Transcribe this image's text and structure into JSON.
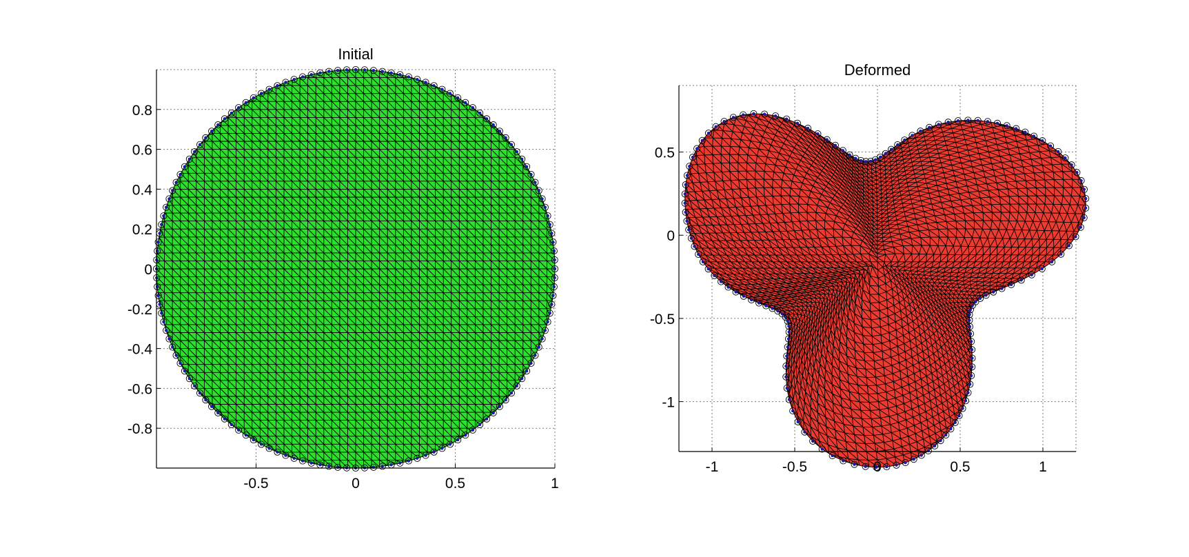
{
  "chart_data": [
    {
      "type": "scatter",
      "title": "Initial",
      "xlabel": "",
      "ylabel": "",
      "xlim": [
        -1,
        1
      ],
      "ylim": [
        -1,
        1
      ],
      "xticks": [
        -0.5,
        0,
        0.5,
        1
      ],
      "xtick_labels": [
        "-0.5",
        "0",
        "0.5",
        "1"
      ],
      "yticks": [
        -0.8,
        -0.6,
        -0.4,
        -0.2,
        0,
        0.2,
        0.4,
        0.6,
        0.8
      ],
      "ytick_labels": [
        "-0.8",
        "-0.6",
        "-0.4",
        "-0.2",
        "0",
        "0.2",
        "0.4",
        "0.6",
        "0.8"
      ],
      "grid": true,
      "shape": "circle",
      "radius": 1,
      "fill_color": "#2ee02e",
      "mesh_color": "#000000",
      "boundary_node_color": "#1a1aa8",
      "boundary_nodes": 140,
      "mesh_divisions": 50
    },
    {
      "type": "scatter",
      "title": "Deformed",
      "xlabel": "",
      "ylabel": "",
      "xlim": [
        -1.2,
        1.2
      ],
      "ylim": [
        -1.3,
        0.9
      ],
      "xticks": [
        -1,
        -0.5,
        0,
        0.5,
        1
      ],
      "xtick_labels": [
        "-1",
        "-0.5",
        "0",
        "0.5",
        "1"
      ],
      "yticks": [
        -1,
        -0.5,
        0,
        0.5
      ],
      "ytick_labels": [
        "-1",
        "-0.5",
        "0",
        "0.5"
      ],
      "grid": true,
      "shape": "three-lobed",
      "fill_color": "#ec3b30",
      "mesh_color": "#1a1a80",
      "boundary_node_color": "#1a1aa8",
      "boundary_nodes": 140,
      "mesh_divisions": 50
    }
  ]
}
